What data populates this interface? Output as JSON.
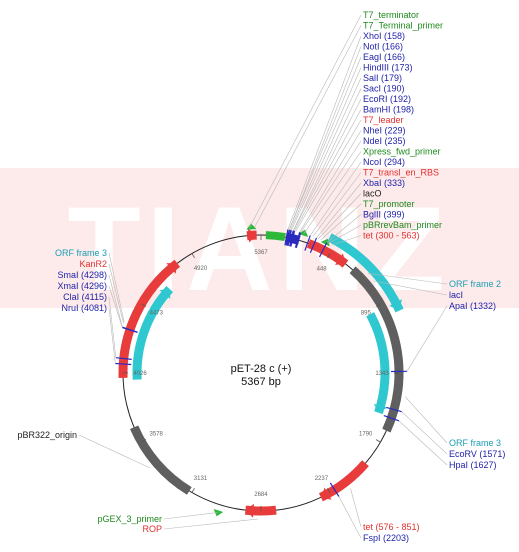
{
  "watermark": {
    "text": "TIANZ"
  },
  "plasmid": {
    "name": "pET-28 c (+)",
    "size_label": "5367 bp",
    "length": 5367
  },
  "colors": {
    "blue": "#1c1fa8",
    "green": "#1f8a1f",
    "red": "#e23030",
    "cyan": "#1b9eb5",
    "black": "#222222",
    "orf": "#2fc8d0",
    "gene": "#e83c3c",
    "origin": "#5f5f5f",
    "primer": "#2db83a",
    "site": "#2a2abf"
  },
  "position_ticks": [
    "448",
    "895",
    "1343",
    "1790",
    "2237",
    "2684",
    "3131",
    "3578",
    "4026",
    "4473",
    "4920",
    "5367"
  ],
  "features": [
    {
      "name": "T7_terminator",
      "kind": "primer",
      "start": 30,
      "end": 150
    },
    {
      "name": "KanR2",
      "kind": "gene",
      "start": 3995,
      "end": 4810
    },
    {
      "name": "pBR322_origin",
      "kind": "origin",
      "start": 3150,
      "end": 3680
    },
    {
      "name": "ROP",
      "kind": "gene",
      "start": 2590,
      "end": 2780
    },
    {
      "name": "tet",
      "kind": "gene",
      "start": 300,
      "end": 563
    },
    {
      "name": "tet",
      "kind": "gene",
      "start": 1950,
      "end": 2300
    },
    {
      "name": "",
      "kind": "origin",
      "start": 620,
      "end": 1710
    },
    {
      "name": "ORF frame 3",
      "kind": "orf",
      "start": 3980,
      "end": 4660
    },
    {
      "name": "ORF frame 2",
      "kind": "orf",
      "start": 400,
      "end": 980
    },
    {
      "name": "ORF frame 3",
      "kind": "orf",
      "start": 920,
      "end": 1620
    },
    {
      "name": "lacI",
      "kind": "gene",
      "start": 5280,
      "end": 5340
    },
    {
      "name": "",
      "kind": "site_block",
      "start": 155,
      "end": 240
    }
  ],
  "primers_marks": [
    {
      "name": "T7_terminator",
      "at": 5310
    },
    {
      "name": "Xpress_fwd_primer",
      "at": 255
    },
    {
      "name": "T7_promoter",
      "at": 395
    },
    {
      "name": "pGEX_3_primer",
      "at": 2940
    }
  ],
  "labels_right_top": [
    {
      "text": "T7_terminator",
      "color": "green",
      "at": 5300
    },
    {
      "text": "T7_Terminal_primer",
      "color": "green",
      "at": 5330
    },
    {
      "text": "XhoI (158)",
      "color": "blue",
      "at": 158
    },
    {
      "text": "NotI (166)",
      "color": "blue",
      "at": 166
    },
    {
      "text": "EagI (166)",
      "color": "blue",
      "at": 166
    },
    {
      "text": "HindIII (173)",
      "color": "blue",
      "at": 173
    },
    {
      "text": "SalI (179)",
      "color": "blue",
      "at": 179
    },
    {
      "text": "SacI (190)",
      "color": "blue",
      "at": 190
    },
    {
      "text": "EcoRI (192)",
      "color": "blue",
      "at": 192
    },
    {
      "text": "BamHI (198)",
      "color": "blue",
      "at": 198
    },
    {
      "text": "T7_leader",
      "color": "red",
      "at": 205
    },
    {
      "text": "NheI (229)",
      "color": "blue",
      "at": 229
    },
    {
      "text": "NdeI (235)",
      "color": "blue",
      "at": 235
    },
    {
      "text": "Xpress_fwd_primer",
      "color": "green",
      "at": 255
    },
    {
      "text": "NcoI (294)",
      "color": "blue",
      "at": 294
    },
    {
      "text": "T7_transl_en_RBS",
      "color": "red",
      "at": 310
    },
    {
      "text": "XbaI (333)",
      "color": "blue",
      "at": 333
    },
    {
      "text": "lacO",
      "color": "black",
      "at": 345
    },
    {
      "text": "T7_promoter",
      "color": "green",
      "at": 360
    },
    {
      "text": "BglII (399)",
      "color": "blue",
      "at": 399
    },
    {
      "text": "pBRrevBam_primer",
      "color": "green",
      "at": 410
    },
    {
      "text": "tet (300 - 563)",
      "color": "red",
      "at": 430
    }
  ],
  "labels_right_mid": [
    {
      "text": "ORF frame 2",
      "color": "cyan",
      "at": 700
    },
    {
      "text": "lacI",
      "color": "blue",
      "at": 760
    },
    {
      "text": "ApaI (1332)",
      "color": "blue",
      "at": 1332
    }
  ],
  "labels_right_low": [
    {
      "text": "ORF frame 3",
      "color": "cyan",
      "at": 1480
    },
    {
      "text": "EcoRV (1571)",
      "color": "blue",
      "at": 1571
    },
    {
      "text": "HpaI (1627)",
      "color": "blue",
      "at": 1627
    }
  ],
  "labels_bottom_right": [
    {
      "text": "tet (576 - 851)",
      "color": "red",
      "at": 2120
    },
    {
      "text": "FspI (2203)",
      "color": "blue",
      "at": 2203
    }
  ],
  "labels_left_top": [
    {
      "text": "ORF frame 3",
      "color": "cyan",
      "at": 4330
    },
    {
      "text": "KanR2",
      "color": "red",
      "at": 4320
    },
    {
      "text": "SmaI (4298)",
      "color": "blue",
      "at": 4298
    },
    {
      "text": "XmaI (4296)",
      "color": "blue",
      "at": 4296
    },
    {
      "text": "ClaI (4115)",
      "color": "blue",
      "at": 4115
    },
    {
      "text": "NruI (4081)",
      "color": "blue",
      "at": 4081
    }
  ],
  "labels_left_mid": [
    {
      "text": "pBR322_origin",
      "color": "black",
      "at": 3420
    }
  ],
  "labels_left_bottom": [
    {
      "text": "pGEX_3_primer",
      "color": "green",
      "at": 2940
    },
    {
      "text": "ROP",
      "color": "red",
      "at": 2700
    }
  ]
}
